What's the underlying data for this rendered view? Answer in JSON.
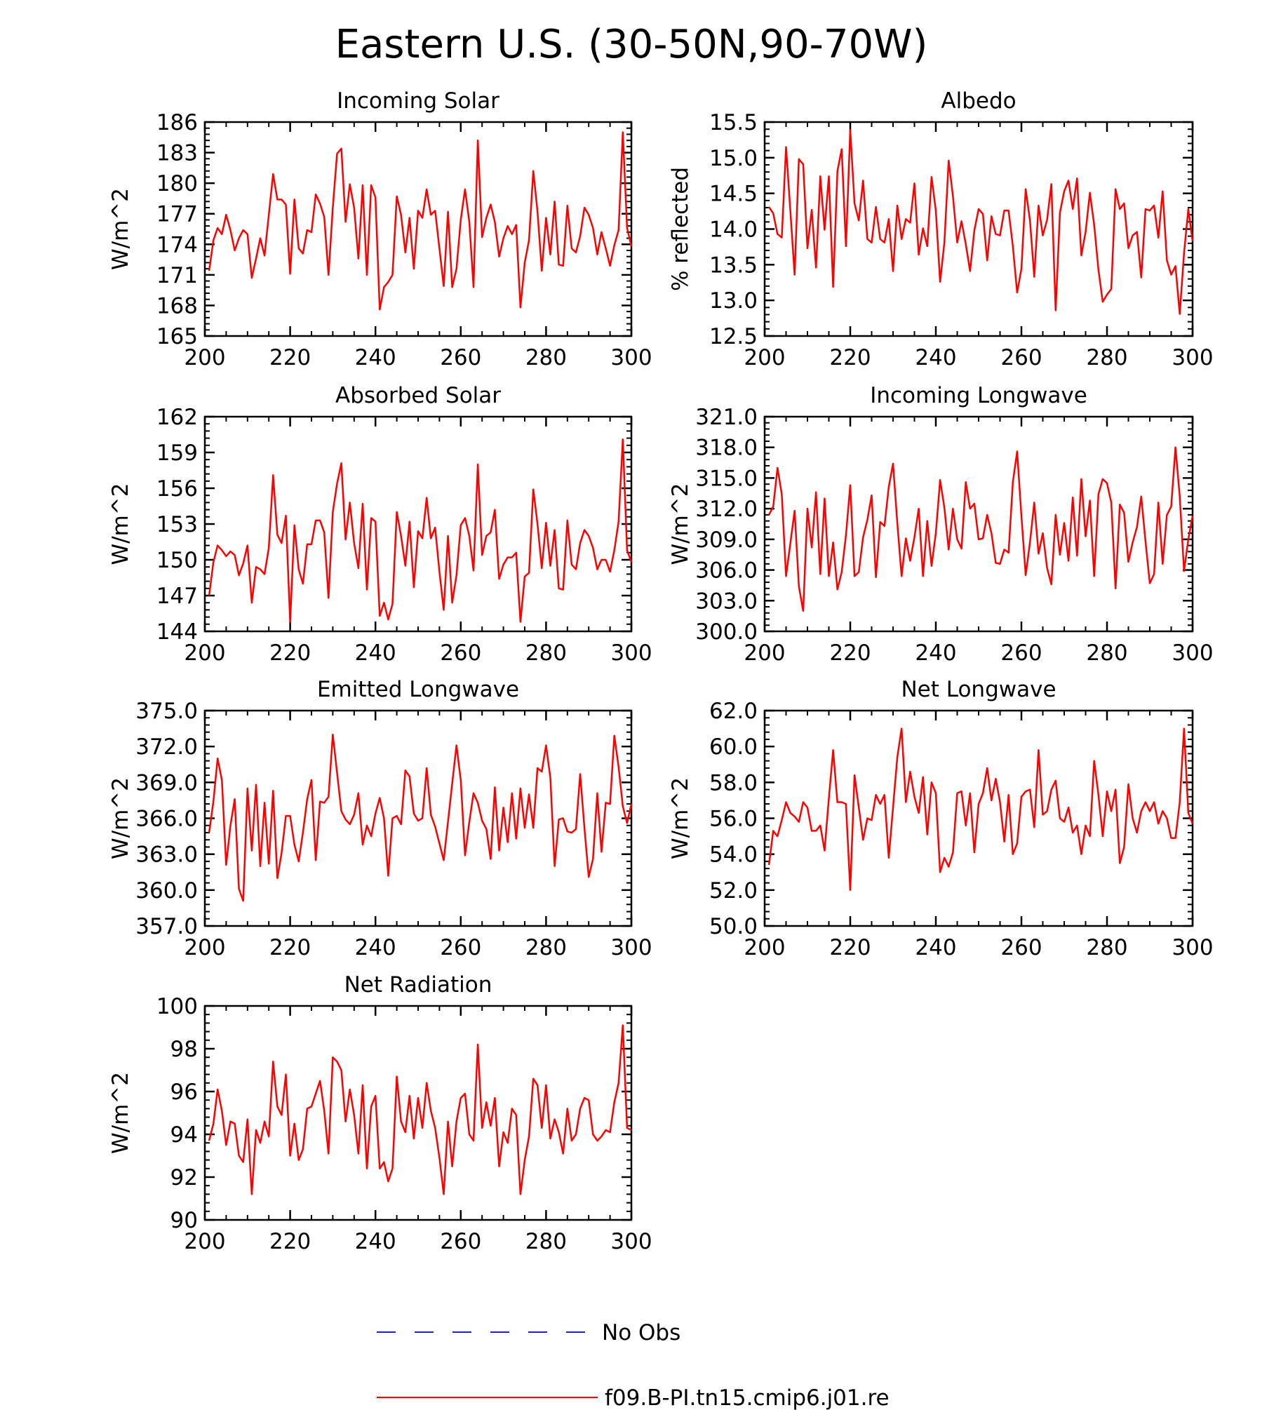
{
  "title": "Eastern U.S. (30-50N,90-70W)",
  "legend": [
    {
      "label": "No Obs",
      "color": "#1f1fd6",
      "style": "dashed"
    },
    {
      "label": "f09.B-PI.tn15.cmip6.j01.re",
      "color": "#ff0000",
      "style": "solid"
    }
  ],
  "chart_data": [
    {
      "type": "line",
      "title": "Incoming Solar",
      "xlabel": "",
      "ylabel": "W/m^2",
      "xlim": [
        200,
        300
      ],
      "ylim": [
        165,
        186
      ],
      "xticks": [
        200,
        220,
        240,
        260,
        280,
        300
      ],
      "yticks": [
        165,
        168,
        171,
        174,
        177,
        180,
        183,
        186
      ],
      "ytick_labels": [
        "165",
        "168",
        "171",
        "174",
        "177",
        "180",
        "183",
        "186"
      ],
      "series": [
        {
          "name": "f09.B-PI.tn15.cmip6.j01.re",
          "color": "#ff0000",
          "x_start": 201,
          "values": [
            171.4,
            174.4,
            175.6,
            175.0,
            176.9,
            175.4,
            173.4,
            174.6,
            175.4,
            175.0,
            170.7,
            172.6,
            174.6,
            172.9,
            176.9,
            180.9,
            178.4,
            178.4,
            177.9,
            171.1,
            178.4,
            173.6,
            173.1,
            175.4,
            175.2,
            178.9,
            178.0,
            176.7,
            171.0,
            177.6,
            182.9,
            183.4,
            176.2,
            179.9,
            177.6,
            172.6,
            179.8,
            171.0,
            179.8,
            178.6,
            167.6,
            169.8,
            170.3,
            171.0,
            178.7,
            176.9,
            173.2,
            176.6,
            171.6,
            177.3,
            176.6,
            179.4,
            176.9,
            177.3,
            173.6,
            169.9,
            177.2,
            169.8,
            171.6,
            176.4,
            179.4,
            176.2,
            169.8,
            184.2,
            174.7,
            176.6,
            177.9,
            176.2,
            172.8,
            174.6,
            175.8,
            175.0,
            175.9,
            167.8,
            172.2,
            174.4,
            181.2,
            177.2,
            171.4,
            176.6,
            173.0,
            178.2,
            172.0,
            171.9,
            177.8,
            173.6,
            173.2,
            174.8,
            177.6,
            176.9,
            175.6,
            173.0,
            175.2,
            173.6,
            171.9,
            173.9,
            175.4,
            185.0,
            175.6,
            173.8
          ]
        }
      ]
    },
    {
      "type": "line",
      "title": "Albedo",
      "xlabel": "",
      "ylabel": "% reflected",
      "xlim": [
        200,
        300
      ],
      "ylim": [
        12.5,
        15.5
      ],
      "xticks": [
        200,
        220,
        240,
        260,
        280,
        300
      ],
      "yticks": [
        12.5,
        13.0,
        13.5,
        14.0,
        14.5,
        15.0,
        15.5
      ],
      "ytick_labels": [
        "12.5",
        "13.0",
        "13.5",
        "14.0",
        "14.5",
        "15.0",
        "15.5"
      ],
      "series": [
        {
          "name": "f09.B-PI.tn15.cmip6.j01.re",
          "color": "#ff0000",
          "x_start": 201,
          "values": [
            14.31,
            14.22,
            13.93,
            13.88,
            15.15,
            14.26,
            13.36,
            14.98,
            14.91,
            13.73,
            14.27,
            13.46,
            14.74,
            13.99,
            14.74,
            13.19,
            14.81,
            15.12,
            13.76,
            15.39,
            14.36,
            14.12,
            14.68,
            13.86,
            13.81,
            14.31,
            13.86,
            13.81,
            14.14,
            13.41,
            14.33,
            13.86,
            14.14,
            14.09,
            14.64,
            13.64,
            14.01,
            13.76,
            14.73,
            14.26,
            13.26,
            13.81,
            14.96,
            14.46,
            13.81,
            14.11,
            13.79,
            13.41,
            13.98,
            14.28,
            14.21,
            13.56,
            14.18,
            13.93,
            13.91,
            14.26,
            14.26,
            13.76,
            13.11,
            13.44,
            14.56,
            14.12,
            13.33,
            14.33,
            13.91,
            14.13,
            14.63,
            12.86,
            14.23,
            14.53,
            14.68,
            14.28,
            14.71,
            13.63,
            13.96,
            14.51,
            14.06,
            13.43,
            12.98,
            13.08,
            13.16,
            14.56,
            14.28,
            14.36,
            13.73,
            13.91,
            13.96,
            13.32,
            14.28,
            14.26,
            14.33,
            13.88,
            14.53,
            13.56,
            13.36,
            13.48,
            12.81,
            13.66,
            14.28,
            13.83
          ]
        }
      ]
    },
    {
      "type": "line",
      "title": "Absorbed Solar",
      "xlabel": "",
      "ylabel": "W/m^2",
      "xlim": [
        200,
        300
      ],
      "ylim": [
        144,
        162
      ],
      "xticks": [
        200,
        220,
        240,
        260,
        280,
        300
      ],
      "yticks": [
        144,
        147,
        150,
        153,
        156,
        159,
        162
      ],
      "ytick_labels": [
        "144",
        "147",
        "150",
        "153",
        "156",
        "159",
        "162"
      ],
      "series": [
        {
          "name": "f09.B-PI.tn15.cmip6.j01.re",
          "color": "#ff0000",
          "x_start": 201,
          "values": [
            147.0,
            149.8,
            151.2,
            150.8,
            150.3,
            150.7,
            150.4,
            148.7,
            149.7,
            151.2,
            146.4,
            149.4,
            149.2,
            148.8,
            151.0,
            157.1,
            152.1,
            151.4,
            153.7,
            144.8,
            152.9,
            149.2,
            148.0,
            151.3,
            151.3,
            153.3,
            153.3,
            152.3,
            146.8,
            154.0,
            156.4,
            158.1,
            151.7,
            154.8,
            151.4,
            149.3,
            154.7,
            147.5,
            153.5,
            153.2,
            145.3,
            146.4,
            145.0,
            146.3,
            154.0,
            152.0,
            149.5,
            153.2,
            147.7,
            152.4,
            151.8,
            155.2,
            151.8,
            152.7,
            149.0,
            145.8,
            152.0,
            146.4,
            148.7,
            152.9,
            153.5,
            152.0,
            149.1,
            158.0,
            150.4,
            152.0,
            152.3,
            154.2,
            148.4,
            149.6,
            150.2,
            150.2,
            150.6,
            144.8,
            148.6,
            148.9,
            155.9,
            153.0,
            149.3,
            153.1,
            149.5,
            152.5,
            147.6,
            147.5,
            153.3,
            149.6,
            149.2,
            151.4,
            152.5,
            152.0,
            151.0,
            149.2,
            150.0,
            150.0,
            149.0,
            150.8,
            153.2,
            160.1,
            150.8,
            149.8
          ]
        }
      ]
    },
    {
      "type": "line",
      "title": "Incoming Longwave",
      "xlabel": "",
      "ylabel": "W/m^2",
      "xlim": [
        200,
        300
      ],
      "ylim": [
        300,
        321
      ],
      "xticks": [
        200,
        220,
        240,
        260,
        280,
        300
      ],
      "yticks": [
        300,
        303,
        306,
        309,
        312,
        315,
        318,
        321
      ],
      "ytick_labels": [
        "300.0",
        "303.0",
        "306.0",
        "309.0",
        "312.0",
        "315.0",
        "318.0",
        "321.0"
      ],
      "series": [
        {
          "name": "f09.B-PI.tn15.cmip6.j01.re",
          "color": "#ff0000",
          "x_start": 201,
          "values": [
            311.4,
            312.2,
            316.0,
            313.4,
            305.4,
            308.6,
            311.8,
            304.4,
            302.0,
            312.0,
            308.2,
            313.6,
            305.6,
            313.0,
            305.4,
            308.7,
            304.1,
            305.8,
            309.4,
            314.3,
            305.4,
            305.8,
            309.2,
            310.9,
            313.3,
            305.3,
            310.7,
            310.3,
            314.1,
            316.4,
            310.6,
            305.4,
            309.1,
            306.9,
            309.2,
            312.0,
            305.4,
            310.8,
            306.4,
            309.6,
            314.8,
            312.1,
            308.0,
            312.0,
            309.0,
            308.1,
            314.6,
            312.0,
            312.5,
            309.0,
            309.1,
            311.4,
            309.6,
            306.7,
            306.6,
            308.0,
            307.7,
            314.6,
            317.6,
            311.3,
            305.5,
            308.7,
            312.6,
            307.6,
            309.6,
            306.2,
            304.6,
            311.4,
            307.5,
            310.6,
            306.9,
            313.1,
            307.4,
            314.9,
            309.3,
            312.8,
            305.4,
            313.4,
            314.9,
            314.5,
            312.6,
            304.2,
            312.4,
            311.6,
            306.8,
            308.7,
            310.2,
            313.2,
            308.8,
            304.7,
            305.6,
            312.6,
            306.6,
            311.4,
            312.2,
            318.0,
            313.2,
            305.9,
            309.0,
            311.3
          ]
        }
      ]
    },
    {
      "type": "line",
      "title": "Emitted Longwave",
      "xlabel": "",
      "ylabel": "W/m^2",
      "xlim": [
        200,
        300
      ],
      "ylim": [
        357,
        375
      ],
      "xticks": [
        200,
        220,
        240,
        260,
        280,
        300
      ],
      "yticks": [
        357,
        360,
        363,
        366,
        369,
        372,
        375
      ],
      "ytick_labels": [
        "357.0",
        "360.0",
        "363.0",
        "366.0",
        "369.0",
        "372.0",
        "375.0"
      ],
      "series": [
        {
          "name": "f09.B-PI.tn15.cmip6.j01.re",
          "color": "#ff0000",
          "x_start": 201,
          "values": [
            364.8,
            367.4,
            371.0,
            369.2,
            362.1,
            365.4,
            367.6,
            360.1,
            359.1,
            368.5,
            363.3,
            368.8,
            362.0,
            367.3,
            362.2,
            368.3,
            361.0,
            363.1,
            366.2,
            366.2,
            363.8,
            362.4,
            364.8,
            367.6,
            369.2,
            362.5,
            367.4,
            367.3,
            367.8,
            373.0,
            369.8,
            366.6,
            365.9,
            365.5,
            366.3,
            368.1,
            363.8,
            365.4,
            364.5,
            366.4,
            367.7,
            366.0,
            361.2,
            366.0,
            366.2,
            365.5,
            370.0,
            369.5,
            366.4,
            365.8,
            366.0,
            370.2,
            366.3,
            365.3,
            363.9,
            362.5,
            365.7,
            368.9,
            372.1,
            369.2,
            362.9,
            365.7,
            368.1,
            367.3,
            365.8,
            365.1,
            362.6,
            368.6,
            363.3,
            366.9,
            364.0,
            368.1,
            364.3,
            368.5,
            365.2,
            368.0,
            365.2,
            370.2,
            369.9,
            372.1,
            369.4,
            362.0,
            365.9,
            366.0,
            364.9,
            364.8,
            365.1,
            369.7,
            365.2,
            361.1,
            362.6,
            368.1,
            363.2,
            367.3,
            367.2,
            372.9,
            370.3,
            367.0,
            365.6,
            367.2
          ]
        }
      ]
    },
    {
      "type": "line",
      "title": "Net Longwave",
      "xlabel": "",
      "ylabel": "W/m^2",
      "xlim": [
        200,
        300
      ],
      "ylim": [
        50,
        62
      ],
      "xticks": [
        200,
        220,
        240,
        260,
        280,
        300
      ],
      "yticks": [
        50,
        52,
        54,
        56,
        58,
        60,
        62
      ],
      "ytick_labels": [
        "50.0",
        "52.0",
        "54.0",
        "56.0",
        "58.0",
        "60.0",
        "62.0"
      ],
      "series": [
        {
          "name": "f09.B-PI.tn15.cmip6.j01.re",
          "color": "#ff0000",
          "x_start": 201,
          "values": [
            53.4,
            55.3,
            55.0,
            55.9,
            56.9,
            56.3,
            56.1,
            55.8,
            56.9,
            56.6,
            55.3,
            55.3,
            55.6,
            54.2,
            57.1,
            59.8,
            56.9,
            56.9,
            56.8,
            52.0,
            58.4,
            56.6,
            54.8,
            56.0,
            55.9,
            57.3,
            56.8,
            57.3,
            53.8,
            56.6,
            59.4,
            61.0,
            56.9,
            58.6,
            57.2,
            56.3,
            58.3,
            55.1,
            58.0,
            57.4,
            53.0,
            53.8,
            53.3,
            54.1,
            57.4,
            57.5,
            55.6,
            57.4,
            54.1,
            56.8,
            57.4,
            58.8,
            57.0,
            58.2,
            56.9,
            54.7,
            57.3,
            54.0,
            54.6,
            57.2,
            57.5,
            57.6,
            55.5,
            59.8,
            56.2,
            56.4,
            57.6,
            58.1,
            56.0,
            55.8,
            56.6,
            55.2,
            55.6,
            54.0,
            55.6,
            55.0,
            59.2,
            57.3,
            55.0,
            57.5,
            56.4,
            57.6,
            53.5,
            54.4,
            57.9,
            56.0,
            55.2,
            56.4,
            56.9,
            56.4,
            56.9,
            55.7,
            56.4,
            56.0,
            54.9,
            54.9,
            56.9,
            61.0,
            56.3,
            55.7
          ]
        }
      ]
    },
    {
      "type": "line",
      "title": "Net Radiation",
      "xlabel": "",
      "ylabel": "W/m^2",
      "xlim": [
        200,
        300
      ],
      "ylim": [
        90,
        100
      ],
      "xticks": [
        200,
        220,
        240,
        260,
        280,
        300
      ],
      "yticks": [
        90,
        92,
        94,
        96,
        98,
        100
      ],
      "ytick_labels": [
        "90",
        "92",
        "94",
        "96",
        "98",
        "100"
      ],
      "series": [
        {
          "name": "f09.B-PI.tn15.cmip6.j01.re",
          "color": "#ff0000",
          "x_start": 201,
          "values": [
            93.7,
            94.5,
            96.1,
            95.1,
            93.5,
            94.6,
            94.5,
            93.0,
            92.7,
            94.7,
            91.2,
            94.2,
            93.6,
            94.6,
            93.9,
            97.4,
            95.3,
            94.9,
            96.8,
            93.0,
            94.5,
            92.8,
            93.3,
            95.2,
            95.3,
            95.9,
            96.5,
            95.1,
            93.1,
            97.6,
            97.4,
            97.0,
            94.6,
            96.1,
            94.9,
            93.1,
            96.3,
            92.4,
            95.3,
            95.8,
            92.4,
            92.7,
            91.8,
            92.4,
            96.7,
            94.6,
            94.1,
            95.8,
            93.8,
            95.7,
            94.3,
            96.4,
            95.1,
            94.3,
            92.9,
            91.2,
            94.6,
            92.5,
            94.6,
            95.7,
            95.9,
            94.0,
            93.7,
            98.2,
            94.3,
            95.5,
            94.4,
            95.7,
            92.5,
            94.1,
            93.6,
            95.2,
            94.9,
            91.2,
            92.8,
            93.9,
            96.6,
            96.3,
            94.3,
            96.3,
            93.8,
            94.7,
            94.1,
            93.1,
            95.2,
            93.7,
            94.0,
            95.2,
            95.7,
            95.6,
            94.0,
            93.7,
            93.9,
            94.2,
            94.1,
            95.5,
            96.4,
            99.1,
            94.3,
            94.2
          ]
        }
      ]
    }
  ]
}
